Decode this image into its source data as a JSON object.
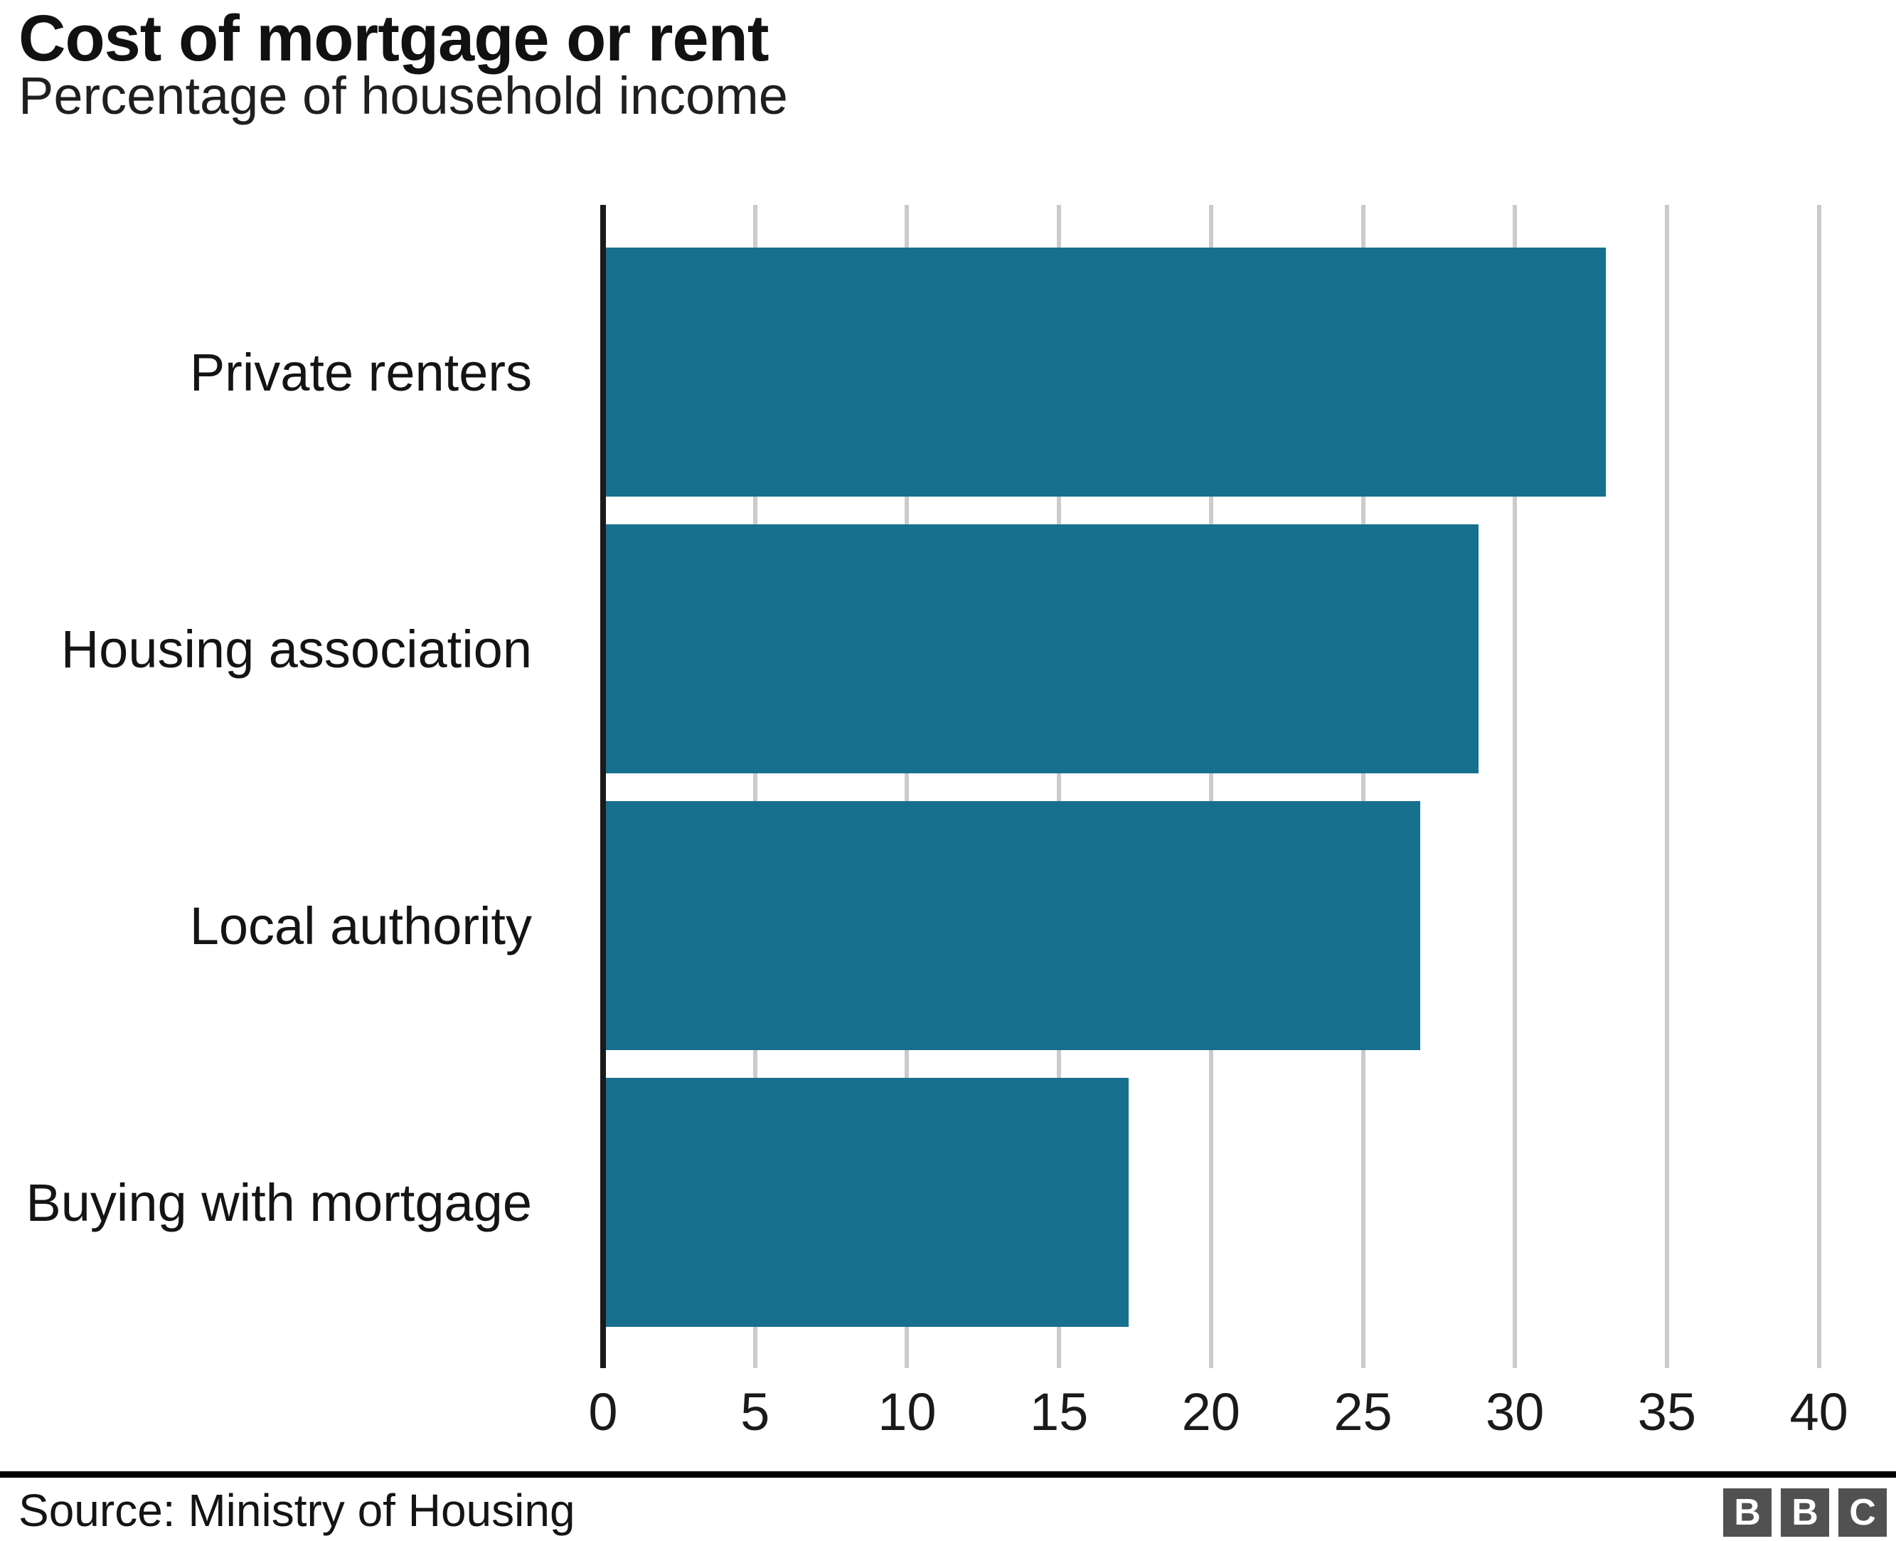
{
  "title": "Cost of mortgage or rent",
  "subtitle": "Percentage of household income",
  "footer": {
    "source": "Source: Ministry of Housing"
  },
  "logo": {
    "letters": [
      "B",
      "B",
      "C"
    ]
  },
  "colors": {
    "bar": "#16708E",
    "gridline": "#CBCBCB",
    "axis": "#1A1A1A",
    "rule": "#000000",
    "logo_bg": "#515151",
    "text": "#141414"
  },
  "chart_data": {
    "type": "bar",
    "orientation": "horizontal",
    "title": "Cost of mortgage or rent",
    "subtitle": "Percentage of household income",
    "categories": [
      "Private renters",
      "Housing association",
      "Local authority",
      "Buying with mortgage"
    ],
    "values": [
      32.9,
      28.7,
      26.8,
      17.2
    ],
    "xlabel": "",
    "ylabel": "",
    "xlim": [
      0,
      40
    ],
    "xticks": [
      0,
      5,
      10,
      15,
      20,
      25,
      30,
      35,
      40
    ],
    "grid": true,
    "legend": false,
    "gridline_position": "vertical"
  }
}
